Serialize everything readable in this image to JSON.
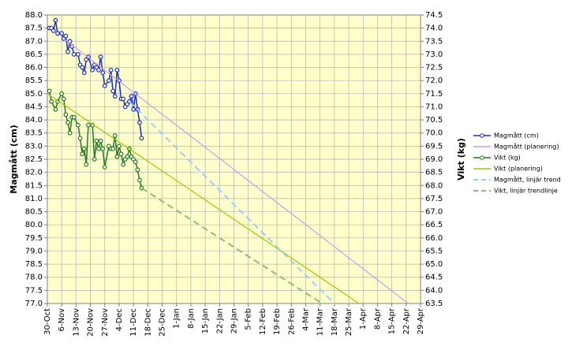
{
  "chart_data": {
    "type": "line",
    "y_label": "Magmått (cm)",
    "y2_label": "Vikt (kg)",
    "grid": true,
    "legend": "right",
    "xlim": [
      0,
      182
    ],
    "xticks": [
      {
        "value": 0,
        "label": "30-Oct"
      },
      {
        "value": 7,
        "label": "6-Nov"
      },
      {
        "value": 14,
        "label": "13-Nov"
      },
      {
        "value": 21,
        "label": "20-Nov"
      },
      {
        "value": 28,
        "label": "27-Nov"
      },
      {
        "value": 35,
        "label": "4-Dec"
      },
      {
        "value": 42,
        "label": "11-Dec"
      },
      {
        "value": 49,
        "label": "18-Dec"
      },
      {
        "value": 56,
        "label": "25-Dec"
      },
      {
        "value": 63,
        "label": "1-Jan"
      },
      {
        "value": 70,
        "label": "8-Jan"
      },
      {
        "value": 77,
        "label": "15-Jan"
      },
      {
        "value": 84,
        "label": "22-Jan"
      },
      {
        "value": 91,
        "label": "29-Jan"
      },
      {
        "value": 98,
        "label": "5-Feb"
      },
      {
        "value": 105,
        "label": "12-Feb"
      },
      {
        "value": 112,
        "label": "19-Feb"
      },
      {
        "value": 119,
        "label": "26-Feb"
      },
      {
        "value": 126,
        "label": "4-Mar"
      },
      {
        "value": 133,
        "label": "11-Mar"
      },
      {
        "value": 140,
        "label": "18-Mar"
      },
      {
        "value": 147,
        "label": "25-Mar"
      },
      {
        "value": 154,
        "label": "1-Apr"
      },
      {
        "value": 161,
        "label": "8-Apr"
      },
      {
        "value": 168,
        "label": "15-Apr"
      },
      {
        "value": 175,
        "label": "22-Apr"
      },
      {
        "value": 182,
        "label": "29-Apr"
      }
    ],
    "ylim": [
      77,
      88
    ],
    "yticks": [
      {
        "value": 77,
        "label": "77.0"
      },
      {
        "value": 77.5,
        "label": "77.5"
      },
      {
        "value": 78,
        "label": "78.0"
      },
      {
        "value": 78.5,
        "label": "78.5"
      },
      {
        "value": 79,
        "label": "79.0"
      },
      {
        "value": 79.5,
        "label": "79.5"
      },
      {
        "value": 80,
        "label": "80.0"
      },
      {
        "value": 80.5,
        "label": "80.5"
      },
      {
        "value": 81,
        "label": "81.0"
      },
      {
        "value": 81.5,
        "label": "81.5"
      },
      {
        "value": 82,
        "label": "82.0"
      },
      {
        "value": 82.5,
        "label": "82.5"
      },
      {
        "value": 83,
        "label": "83.0"
      },
      {
        "value": 83.5,
        "label": "83.5"
      },
      {
        "value": 84,
        "label": "84.0"
      },
      {
        "value": 84.5,
        "label": "84.5"
      },
      {
        "value": 85,
        "label": "85.0"
      },
      {
        "value": 85.5,
        "label": "85.5"
      },
      {
        "value": 86,
        "label": "86.0"
      },
      {
        "value": 86.5,
        "label": "86.5"
      },
      {
        "value": 87,
        "label": "87.0"
      },
      {
        "value": 87.5,
        "label": "87.5"
      },
      {
        "value": 88,
        "label": "88.0"
      }
    ],
    "y2lim": [
      63.5,
      74.5
    ],
    "y2ticks": [
      {
        "value": 63.5,
        "label": "63.5"
      },
      {
        "value": 64,
        "label": "64.0"
      },
      {
        "value": 64.5,
        "label": "64.5"
      },
      {
        "value": 65,
        "label": "65.0"
      },
      {
        "value": 65.5,
        "label": "65.5"
      },
      {
        "value": 66,
        "label": "66.0"
      },
      {
        "value": 66.5,
        "label": "66.5"
      },
      {
        "value": 67,
        "label": "67.0"
      },
      {
        "value": 67.5,
        "label": "67.5"
      },
      {
        "value": 68,
        "label": "68.0"
      },
      {
        "value": 68.5,
        "label": "68.5"
      },
      {
        "value": 69,
        "label": "69.0"
      },
      {
        "value": 69.5,
        "label": "69.5"
      },
      {
        "value": 70,
        "label": "70.0"
      },
      {
        "value": 70.5,
        "label": "70.5"
      },
      {
        "value": 71,
        "label": "71.0"
      },
      {
        "value": 71.5,
        "label": "71.5"
      },
      {
        "value": 72,
        "label": "72.0"
      },
      {
        "value": 72.5,
        "label": "72.5"
      },
      {
        "value": 73,
        "label": "73.0"
      },
      {
        "value": 73.5,
        "label": "73.5"
      },
      {
        "value": 74,
        "label": "74.0"
      },
      {
        "value": 74.5,
        "label": "74.5"
      }
    ],
    "series": [
      {
        "name": "Magmått (cm)",
        "color": "#1a2fbf",
        "marker": true,
        "dash": false,
        "x": [
          1,
          2,
          3,
          4,
          5,
          7,
          8,
          9,
          10,
          11,
          12,
          13,
          15,
          16,
          17,
          18,
          19,
          20,
          22,
          23,
          24,
          25,
          26,
          27,
          28,
          30,
          31,
          32,
          33,
          34,
          35,
          36,
          37,
          38,
          39,
          40,
          41,
          42,
          43,
          44,
          45,
          46
        ],
        "values": [
          87.5,
          87.5,
          87.4,
          87.8,
          87.3,
          87.3,
          87.1,
          87.2,
          86.6,
          87.0,
          86.8,
          86.5,
          86.5,
          86.1,
          86.0,
          85.8,
          86.3,
          86.4,
          85.9,
          86.1,
          86.0,
          85.9,
          86.4,
          85.8,
          85.3,
          85.5,
          85.9,
          85.1,
          84.9,
          85.9,
          85.5,
          84.8,
          84.8,
          84.5,
          84.6,
          84.7,
          84.9,
          84.4,
          85.0,
          84.4,
          83.9,
          83.3
        ]
      },
      {
        "name": "Magmått (planering)",
        "color": "#cc99ee",
        "marker": false,
        "dash": false,
        "x": [
          8,
          176
        ],
        "values": [
          87.1,
          77.0
        ]
      },
      {
        "name": "Vikt (kg)",
        "color": "#237a1c",
        "marker": true,
        "dash": false,
        "axis": "y2",
        "x": [
          1,
          2,
          4,
          5,
          7,
          8,
          9,
          10,
          11,
          12,
          13,
          15,
          16,
          17,
          18,
          19,
          20,
          22,
          23,
          24,
          25,
          26,
          27,
          28,
          30,
          31,
          32,
          33,
          34,
          35,
          36,
          37,
          38,
          39,
          40,
          41,
          42,
          43,
          44,
          45,
          46
        ],
        "values": [
          71.6,
          71.2,
          70.9,
          71.2,
          71.5,
          71.3,
          70.7,
          70.4,
          70.0,
          70.6,
          70.6,
          70.3,
          69.8,
          69.2,
          69.4,
          68.8,
          70.3,
          70.3,
          69.0,
          69.7,
          69.4,
          69.7,
          69.4,
          68.7,
          69.5,
          69.4,
          69.4,
          69.9,
          69.1,
          69.5,
          69.2,
          68.8,
          69.0,
          69.1,
          69.4,
          69.1,
          69.0,
          68.9,
          68.6,
          68.2,
          67.9
        ]
      },
      {
        "name": "Vikt (planering)",
        "color": "#99cc00",
        "marker": false,
        "dash": false,
        "axis": "y2",
        "x": [
          0,
          152
        ],
        "values": [
          71.5,
          63.5
        ]
      },
      {
        "name": "Magmått, linjär trend",
        "color": "#99ccff",
        "marker": false,
        "dash": true,
        "x": [
          40,
          140
        ],
        "values": [
          84.7,
          77.0
        ]
      },
      {
        "name": "Vikt, linjär trendlinje",
        "color": "#8fbc7f",
        "marker": false,
        "dash": true,
        "axis": "y2",
        "x": [
          46,
          134
        ],
        "values": [
          67.9,
          63.5
        ]
      }
    ]
  }
}
